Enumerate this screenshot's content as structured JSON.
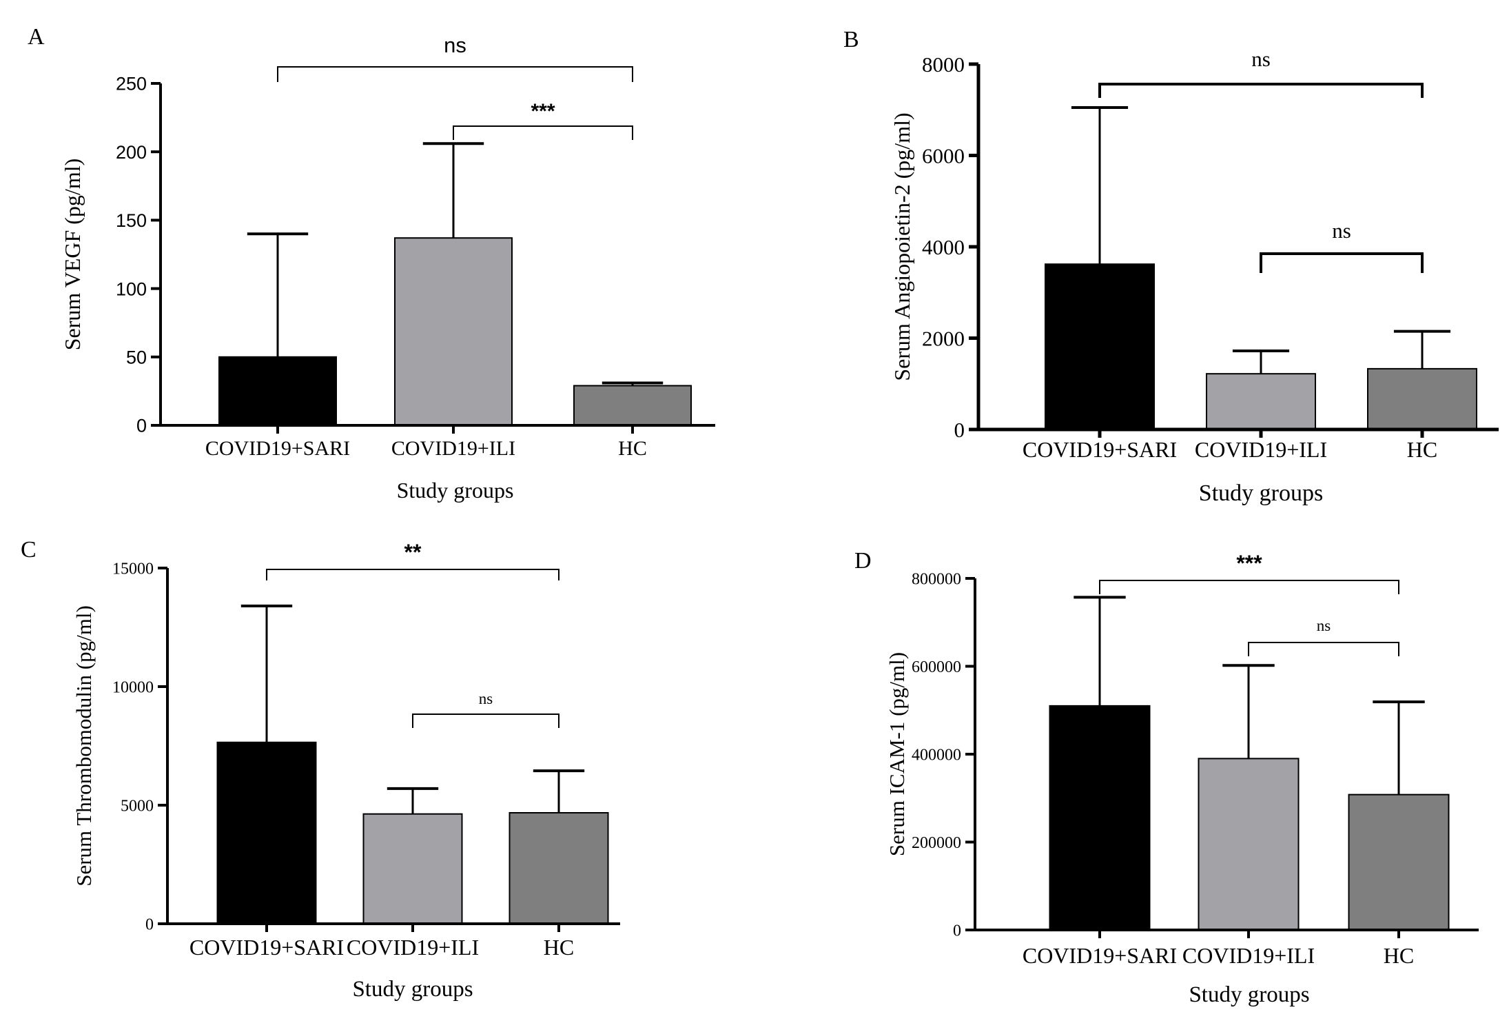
{
  "chart_data": [
    {
      "panel": "A",
      "type": "bar",
      "categories": [
        "COVID19+SARI",
        "COVID19+ILI",
        "HC"
      ],
      "values": [
        50,
        137,
        29
      ],
      "error_upper": [
        140,
        206,
        31
      ],
      "colors": [
        "#000000",
        "#a3a3a7",
        "#7f7f7f"
      ],
      "title": "",
      "xlabel": "Study groups",
      "ylabel": "Serum VEGF (pg/ml)",
      "ylim": [
        0,
        250
      ],
      "yticks": [
        "0",
        "50",
        "100",
        "150",
        "200",
        "250"
      ],
      "grid": false,
      "annotations": [
        {
          "from": "COVID19+SARI",
          "to": "HC",
          "label": "ns"
        },
        {
          "from": "COVID19+ILI",
          "to": "HC",
          "label": "***"
        }
      ]
    },
    {
      "panel": "B",
      "type": "bar",
      "categories": [
        "COVID19+SARI",
        "COVID19+ILI",
        "HC"
      ],
      "values": [
        3620,
        1220,
        1330
      ],
      "error_upper": [
        7050,
        1720,
        2150
      ],
      "colors": [
        "#000000",
        "#a3a3a7",
        "#7f7f7f"
      ],
      "title": "",
      "xlabel": "Study groups",
      "ylabel": "Serum Angiopoietin-2 (pg/ml)",
      "ylim": [
        0,
        8000
      ],
      "yticks": [
        "0",
        "2000",
        "4000",
        "6000",
        "8000"
      ],
      "grid": false,
      "annotations": [
        {
          "from": "COVID19+SARI",
          "to": "HC",
          "label": "ns"
        },
        {
          "from": "COVID19+ILI",
          "to": "HC",
          "label": "ns"
        }
      ]
    },
    {
      "panel": "C",
      "type": "bar",
      "categories": [
        "COVID19+SARI",
        "COVID19+ILI",
        "HC"
      ],
      "values": [
        7650,
        4630,
        4680
      ],
      "error_upper": [
        13400,
        5700,
        6450
      ],
      "colors": [
        "#000000",
        "#a3a3a7",
        "#7f7f7f"
      ],
      "title": "",
      "xlabel": "Study groups",
      "ylabel": "Serum Thrombomodulin (pg/ml)",
      "ylim": [
        0,
        15000
      ],
      "yticks": [
        "0",
        "5000",
        "10000",
        "15000"
      ],
      "grid": false,
      "annotations": [
        {
          "from": "COVID19+SARI",
          "to": "HC",
          "label": "**"
        },
        {
          "from": "COVID19+ILI",
          "to": "HC",
          "label": "ns"
        }
      ]
    },
    {
      "panel": "D",
      "type": "bar",
      "categories": [
        "COVID19+SARI",
        "COVID19+ILI",
        "HC"
      ],
      "values": [
        510000,
        390000,
        308000
      ],
      "error_upper": [
        757000,
        602000,
        519000
      ],
      "colors": [
        "#000000",
        "#a3a3a7",
        "#7f7f7f"
      ],
      "title": "",
      "xlabel": "Study groups",
      "ylabel": "Serum ICAM-1 (pg/ml)",
      "ylim": [
        0,
        800000
      ],
      "yticks": [
        "0",
        "200000",
        "400000",
        "600000",
        "800000"
      ],
      "grid": false,
      "annotations": [
        {
          "from": "COVID19+SARI",
          "to": "HC",
          "label": "***"
        },
        {
          "from": "COVID19+ILI",
          "to": "HC",
          "label": "ns"
        }
      ]
    }
  ]
}
